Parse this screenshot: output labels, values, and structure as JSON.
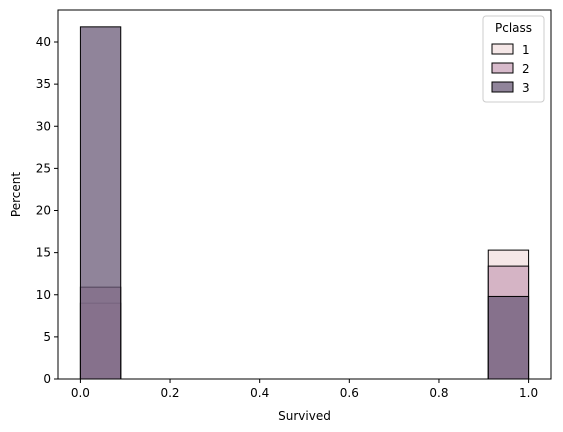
{
  "chart_data": {
    "type": "bar",
    "xlabel": "Survived",
    "ylabel": "Percent",
    "xlim": [
      -0.05,
      1.05
    ],
    "ylim": [
      0,
      43.8
    ],
    "xticks": [
      "0.0",
      "0.2",
      "0.4",
      "0.6",
      "0.8",
      "1.0"
    ],
    "yticks": [
      "0",
      "5",
      "10",
      "15",
      "20",
      "25",
      "30",
      "35",
      "40"
    ],
    "legend_title": "Pclass",
    "legend_position": "top-right",
    "bins": [
      [
        0.0,
        0.09
      ],
      [
        0.91,
        1.0
      ]
    ],
    "series": [
      {
        "name": "1",
        "color": "#f1dfdf",
        "values": [
          9.0,
          15.3
        ]
      },
      {
        "name": "2",
        "color": "#c9a3b9",
        "values": [
          10.9,
          13.4
        ]
      },
      {
        "name": "3",
        "color": "#6b5b78",
        "values": [
          41.8,
          9.8
        ]
      }
    ],
    "grid": false
  }
}
